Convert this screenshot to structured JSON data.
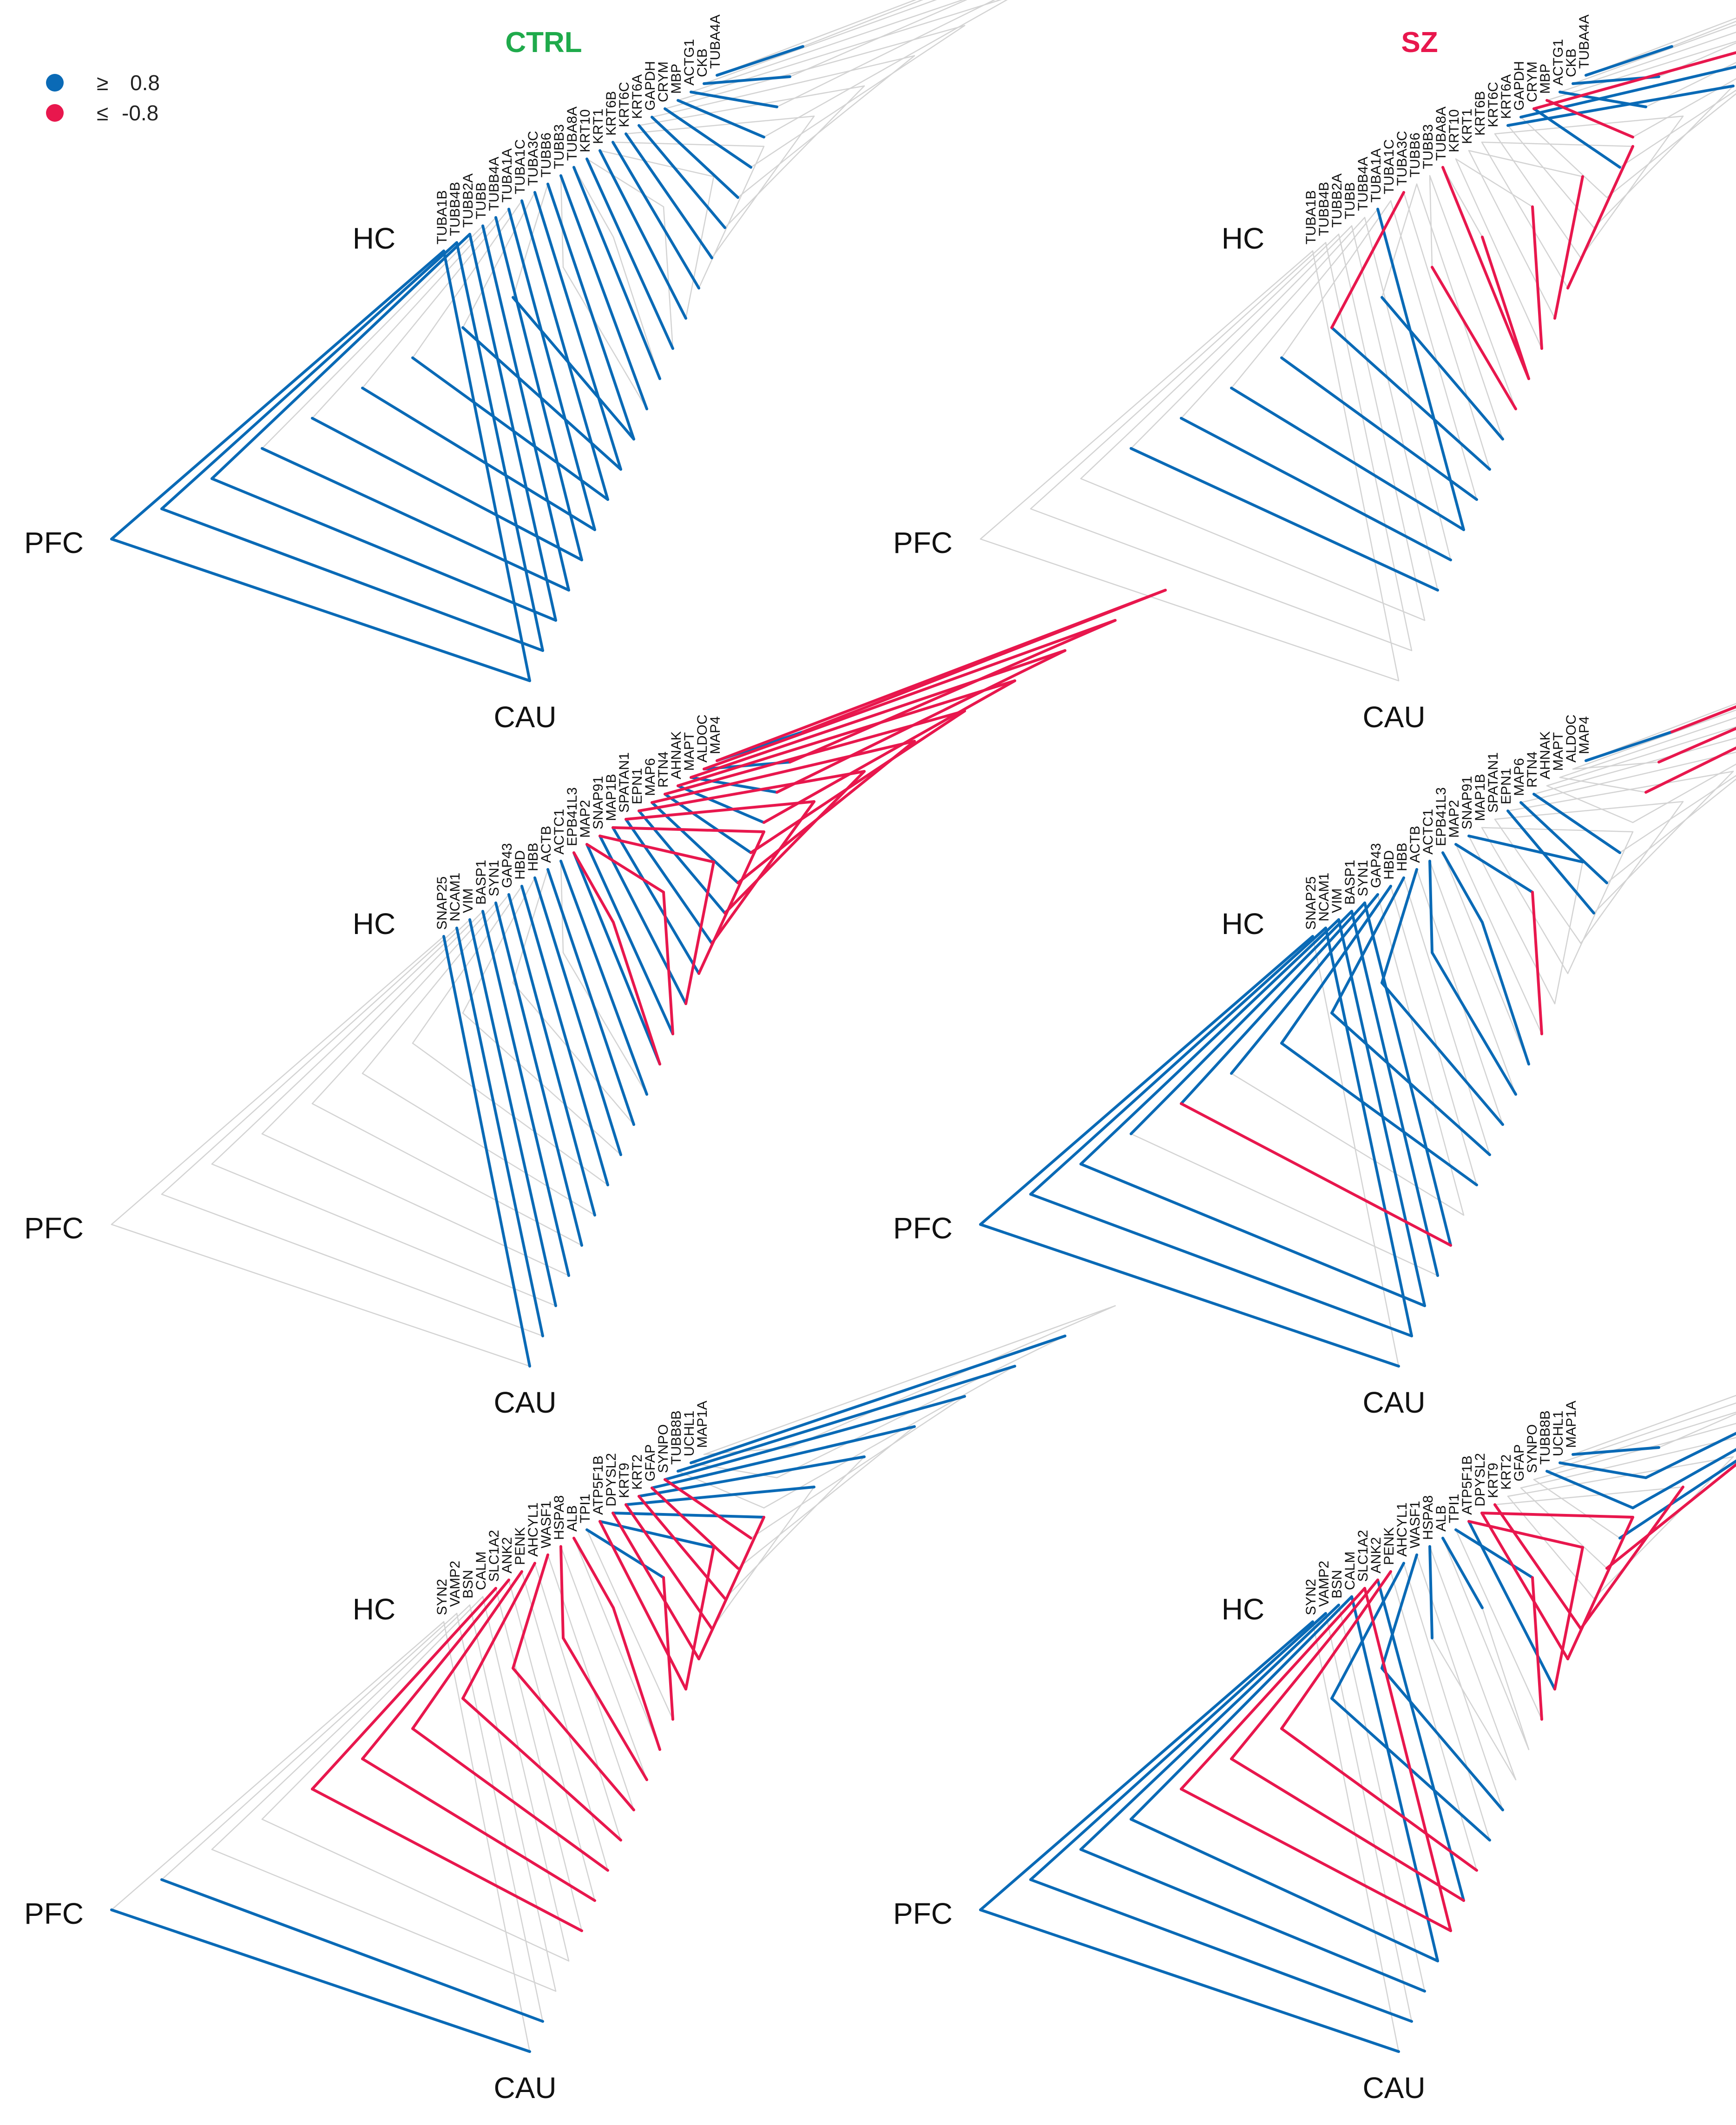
{
  "conditions": [
    {
      "label": "CTRL",
      "color": "#1faa4b"
    },
    {
      "label": "SZ",
      "color": "#e8174d"
    }
  ],
  "legend": [
    {
      "symbol": "≥",
      "value": "0.8",
      "color": "#0a6ab6"
    },
    {
      "symbol": "≤",
      "value": "-0.8",
      "color": "#e8174d"
    }
  ],
  "axes": {
    "hc": "HC",
    "pfc": "PFC",
    "cau": "CAU"
  },
  "colors": {
    "positive": "#0a6ab6",
    "negative": "#e8174d",
    "neutral": "#d3d3d3"
  },
  "chart_data": {
    "type": "hive",
    "axes": [
      "HC",
      "PFC",
      "CAU"
    ],
    "threshold_positive": 0.8,
    "threshold_negative": -0.8,
    "rows": [
      {
        "genes": [
          "TUBA1B",
          "TUBB4B",
          "TUBB2A",
          "TUBB",
          "TUBB4A",
          "TUBA1A",
          "TUBA1C",
          "TUBA3C",
          "TUBB6",
          "TUBB3",
          "TUBA8A",
          "KRT10",
          "KRT1",
          "KRT6B",
          "KRT6C",
          "KRT6A",
          "GAPDH",
          "CRYM",
          "MBP",
          "ACTG1",
          "CKB",
          "TUBA4A"
        ],
        "ctrl": {
          "hc_pfc": [
            "pos",
            "pos",
            "pos",
            "n",
            "n",
            "n",
            "n",
            "n",
            "n",
            "n",
            "n",
            "n",
            "n",
            "n",
            "n",
            "n",
            "n",
            "n",
            "n",
            "n",
            "n",
            "n"
          ],
          "pfc_cau": [
            "pos",
            "pos",
            "pos",
            "pos",
            "pos",
            "pos",
            "pos",
            "pos",
            "pos",
            "n",
            "n",
            "n",
            "n",
            "n",
            "n",
            "n",
            "n",
            "n",
            "n",
            "n",
            "n",
            "n"
          ],
          "hc_cau": [
            "pos",
            "pos",
            "pos",
            "pos",
            "pos",
            "pos",
            "pos",
            "pos",
            "pos",
            "pos",
            "pos",
            "pos",
            "pos",
            "pos",
            "pos",
            "pos",
            "pos",
            "pos",
            "pos",
            "pos",
            "pos",
            "pos"
          ]
        },
        "sz": {
          "hc_pfc": [
            "n",
            "n",
            "n",
            "n",
            "n",
            "n",
            "n",
            "neg",
            "n",
            "n",
            "n",
            "n",
            "n",
            "n",
            "n",
            "pos",
            "pos",
            "neg",
            "n",
            "n",
            "n",
            "n"
          ],
          "pfc_cau": [
            "n",
            "n",
            "n",
            "pos",
            "pos",
            "pos",
            "pos",
            "pos",
            "pos",
            "neg",
            "neg",
            "neg",
            "neg",
            "neg",
            "n",
            "n",
            "n",
            "n",
            "n",
            "n",
            "n",
            "n"
          ],
          "hc_cau": [
            "n",
            "n",
            "n",
            "n",
            "n",
            "pos",
            "n",
            "n",
            "n",
            "n",
            "neg",
            "n",
            "n",
            "n",
            "n",
            "n",
            "n",
            "pos",
            "neg",
            "pos",
            "pos",
            "pos"
          ]
        }
      },
      {
        "genes": [
          "SNAP25",
          "NCAM1",
          "VIM",
          "BASP1",
          "SYN1",
          "GAP43",
          "HBD",
          "HBB",
          "ACTB",
          "ACTC1",
          "EPB41L3",
          "MAP2",
          "SNAP91",
          "MAP1B",
          "SPATAN1",
          "EPN1",
          "MAP6",
          "RTN4",
          "AHNAK",
          "MAPT",
          "ALDOC",
          "MAP4"
        ],
        "ctrl": {
          "hc_pfc": [
            "n",
            "n",
            "n",
            "n",
            "n",
            "n",
            "n",
            "n",
            "n",
            "n",
            "neg",
            "neg",
            "neg",
            "neg",
            "neg",
            "neg",
            "neg",
            "neg",
            "neg",
            "neg",
            "neg",
            "neg"
          ],
          "pfc_cau": [
            "n",
            "n",
            "n",
            "n",
            "n",
            "n",
            "n",
            "n",
            "n",
            "n",
            "neg",
            "neg",
            "neg",
            "neg",
            "neg",
            "neg",
            "neg",
            "neg",
            "neg",
            "neg",
            "neg",
            "neg"
          ],
          "hc_cau": [
            "pos",
            "pos",
            "pos",
            "pos",
            "pos",
            "pos",
            "pos",
            "pos",
            "pos",
            "pos",
            "pos",
            "pos",
            "pos",
            "pos",
            "pos",
            "pos",
            "pos",
            "pos",
            "pos",
            "pos",
            "pos",
            "pos"
          ]
        },
        "sz": {
          "hc_pfc": [
            "pos",
            "pos",
            "pos",
            "pos",
            "pos",
            "pos",
            "pos",
            "pos",
            "pos",
            "pos",
            "pos",
            "pos",
            "pos",
            "n",
            "n",
            "n",
            "n",
            "n",
            "n",
            "n",
            "n",
            "n"
          ],
          "pfc_cau": [
            "pos",
            "pos",
            "pos",
            "n",
            "neg",
            "n",
            "pos",
            "pos",
            "pos",
            "pos",
            "pos",
            "neg",
            "n",
            "n",
            "n",
            "n",
            "n",
            "n",
            "n",
            "neg",
            "neg",
            "neg"
          ],
          "hc_cau": [
            "n",
            "pos",
            "pos",
            "pos",
            "pos",
            "n",
            "n",
            "n",
            "n",
            "n",
            "n",
            "n",
            "n",
            "n",
            "n",
            "pos",
            "pos",
            "pos",
            "n",
            "n",
            "n",
            "pos"
          ]
        }
      },
      {
        "genes": [
          "SYN2",
          "VAMP2",
          "BSN",
          "CALM",
          "SLC1A2",
          "ANK2",
          "PENK",
          "AHCYL1",
          "WASF1",
          "HSPA8",
          "ALB",
          "TPI1",
          "ATP5F1B",
          "DPYSL2",
          "KRT9",
          "KRT2",
          "GFAP",
          "SYNPO",
          "TUBB8B",
          "UCHL1",
          "MAP1A"
        ],
        "ctrl": {
          "hc_pfc": [
            "n",
            "n",
            "n",
            "n",
            "neg",
            "neg",
            "neg",
            "neg",
            "neg",
            "neg",
            "neg",
            "pos",
            "pos",
            "pos",
            "pos",
            "pos",
            "pos",
            "pos",
            "pos",
            "pos",
            "n"
          ],
          "pfc_cau": [
            "pos",
            "pos",
            "n",
            "n",
            "neg",
            "neg",
            "neg",
            "neg",
            "neg",
            "neg",
            "neg",
            "neg",
            "neg",
            "neg",
            "n",
            "n",
            "n",
            "n",
            "n",
            "n",
            "n"
          ],
          "hc_cau": [
            "n",
            "n",
            "n",
            "n",
            "n",
            "n",
            "n",
            "n",
            "n",
            "n",
            "n",
            "n",
            "neg",
            "neg",
            "neg",
            "neg",
            "neg",
            "neg",
            "n",
            "n",
            "n"
          ]
        },
        "sz": {
          "hc_pfc": [
            "pos",
            "pos",
            "pos",
            "pos",
            "neg",
            "neg",
            "neg",
            "pos",
            "pos",
            "pos",
            "pos",
            "pos",
            "neg",
            "neg",
            "n",
            "n",
            "n",
            "n",
            "n",
            "n",
            "n"
          ],
          "pfc_cau": [
            "pos",
            "pos",
            "pos",
            "pos",
            "neg",
            "neg",
            "neg",
            "pos",
            "pos",
            "n",
            "n",
            "neg",
            "neg",
            "neg",
            "neg",
            "n",
            "neg",
            "pos",
            "pos",
            "pos",
            "n"
          ],
          "hc_cau": [
            "n",
            "n",
            "n",
            "pos",
            "neg",
            "pos",
            "n",
            "n",
            "n",
            "n",
            "n",
            "n",
            "pos",
            "neg",
            "neg",
            "n",
            "n",
            "n",
            "pos",
            "pos",
            "pos"
          ]
        }
      }
    ]
  }
}
